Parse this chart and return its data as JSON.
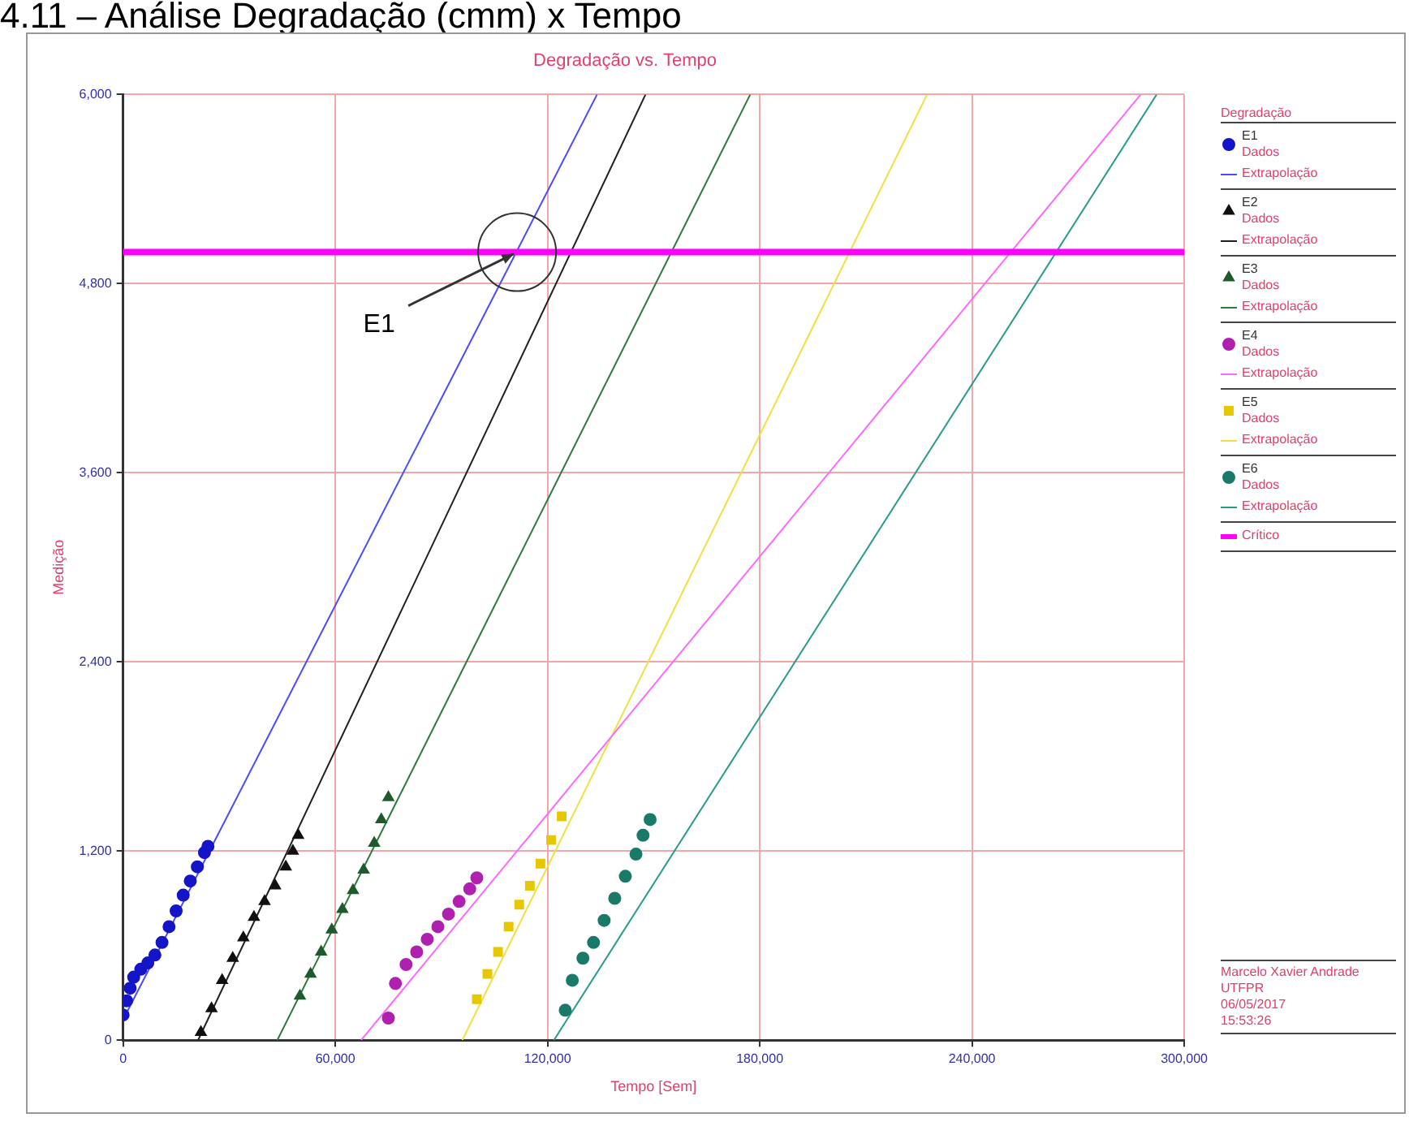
{
  "chart_data": {
    "type": "scatter",
    "title": "Degradação vs. Tempo",
    "xlabel": "Tempo [Sem]",
    "ylabel": "Medição",
    "legend_title": "Degradação",
    "annotations": [
      "4.11 – Análise Degradação (cmm) x Tempo",
      {
        "text": "E1",
        "x": 111400,
        "y": 5000
      },
      "Marcelo Xavier Andrade",
      "UTFPR",
      "06/05/2017",
      "15:53:26"
    ],
    "xlim": [
      0,
      300000
    ],
    "xticks": [
      0,
      {
        "value": 60000,
        "label": "60,000"
      },
      {
        "value": 120000,
        "label": "120,000"
      },
      {
        "value": 180000,
        "label": "180,000"
      },
      {
        "value": 240000,
        "label": "240,000"
      },
      {
        "value": 300000,
        "label": "300,000"
      }
    ],
    "ylim": [
      0,
      6000
    ],
    "yticks": [
      0,
      {
        "value": 1200,
        "label": "1,200"
      },
      {
        "value": 2400,
        "label": "2,400"
      },
      {
        "value": 3600,
        "label": "3,600"
      },
      {
        "value": 4800,
        "label": "4,800"
      },
      {
        "value": 6000,
        "label": "6,000"
      }
    ],
    "grid": true,
    "legend": "right",
    "ref_lines": [
      {
        "axis": "y",
        "value": 5000,
        "label": "Crítico",
        "color": "#ff00ff"
      }
    ],
    "series": [
      {
        "name": "E1\nDados",
        "marker": "circle",
        "color": "#1414c8",
        "x": [
          0,
          1000,
          2000,
          3000,
          5000,
          7000,
          9000,
          11000,
          13000,
          15000,
          17000,
          19000,
          21000,
          23000,
          24000
        ],
        "values": [
          160,
          250,
          330,
          400,
          450,
          490,
          540,
          620,
          720,
          820,
          920,
          1010,
          1100,
          1190,
          1230
        ]
      },
      {
        "name": "Extrapolação",
        "type": "line",
        "color": "#4a4aff",
        "x": [
          0,
          134000
        ],
        "values": [
          130,
          6000
        ]
      },
      {
        "name": "E2\nDados",
        "marker": "triangle",
        "color": "#101010",
        "x": [
          22000,
          25000,
          28000,
          31000,
          34000,
          37000,
          40000,
          43000,
          46000,
          48000,
          49500
        ],
        "values": [
          50,
          200,
          380,
          520,
          650,
          780,
          880,
          980,
          1100,
          1200,
          1300
        ]
      },
      {
        "name": "Extrapolação",
        "type": "line",
        "color": "#202020",
        "x": [
          21200,
          147700
        ],
        "values": [
          0,
          6000
        ]
      },
      {
        "name": "E3\nDados",
        "marker": "triangle",
        "color": "#1e5a2c",
        "x": [
          50000,
          53000,
          56000,
          59000,
          62000,
          65000,
          68000,
          71000,
          73000,
          75000
        ],
        "values": [
          280,
          420,
          560,
          700,
          830,
          950,
          1080,
          1250,
          1400,
          1540
        ]
      },
      {
        "name": "Extrapolação",
        "type": "line",
        "color": "#2e7a3c",
        "x": [
          43600,
          177300
        ],
        "values": [
          0,
          6000
        ]
      },
      {
        "name": "E4\nDados",
        "marker": "circle",
        "color": "#b020b0",
        "x": [
          75000,
          77000,
          80000,
          83000,
          86000,
          89000,
          92000,
          95000,
          98000,
          100000
        ],
        "values": [
          140,
          360,
          480,
          560,
          640,
          720,
          800,
          880,
          960,
          1030
        ]
      },
      {
        "name": "Extrapolação",
        "type": "line",
        "color": "#ff66ff",
        "x": [
          67300,
          287700
        ],
        "values": [
          0,
          6000
        ]
      },
      {
        "name": "E5\nDados",
        "marker": "square",
        "color": "#e6c800",
        "x": [
          100000,
          103000,
          106000,
          109000,
          112000,
          115000,
          118000,
          121000,
          124000
        ],
        "values": [
          260,
          420,
          560,
          720,
          860,
          980,
          1120,
          1270,
          1420
        ]
      },
      {
        "name": "Extrapolação",
        "type": "line",
        "color": "#f0e040",
        "x": [
          95900,
          227300
        ],
        "values": [
          0,
          6000
        ]
      },
      {
        "name": "E6\nDados",
        "marker": "circle",
        "color": "#1a7a6a",
        "x": [
          125000,
          127000,
          130000,
          133000,
          136000,
          139000,
          142000,
          145000,
          147000,
          149000
        ],
        "values": [
          190,
          380,
          520,
          620,
          760,
          900,
          1040,
          1180,
          1300,
          1400
        ]
      },
      {
        "name": "Extrapolação",
        "type": "line",
        "color": "#2a9a8a",
        "x": [
          121800,
          292200
        ],
        "values": [
          0,
          6000
        ]
      }
    ]
  }
}
